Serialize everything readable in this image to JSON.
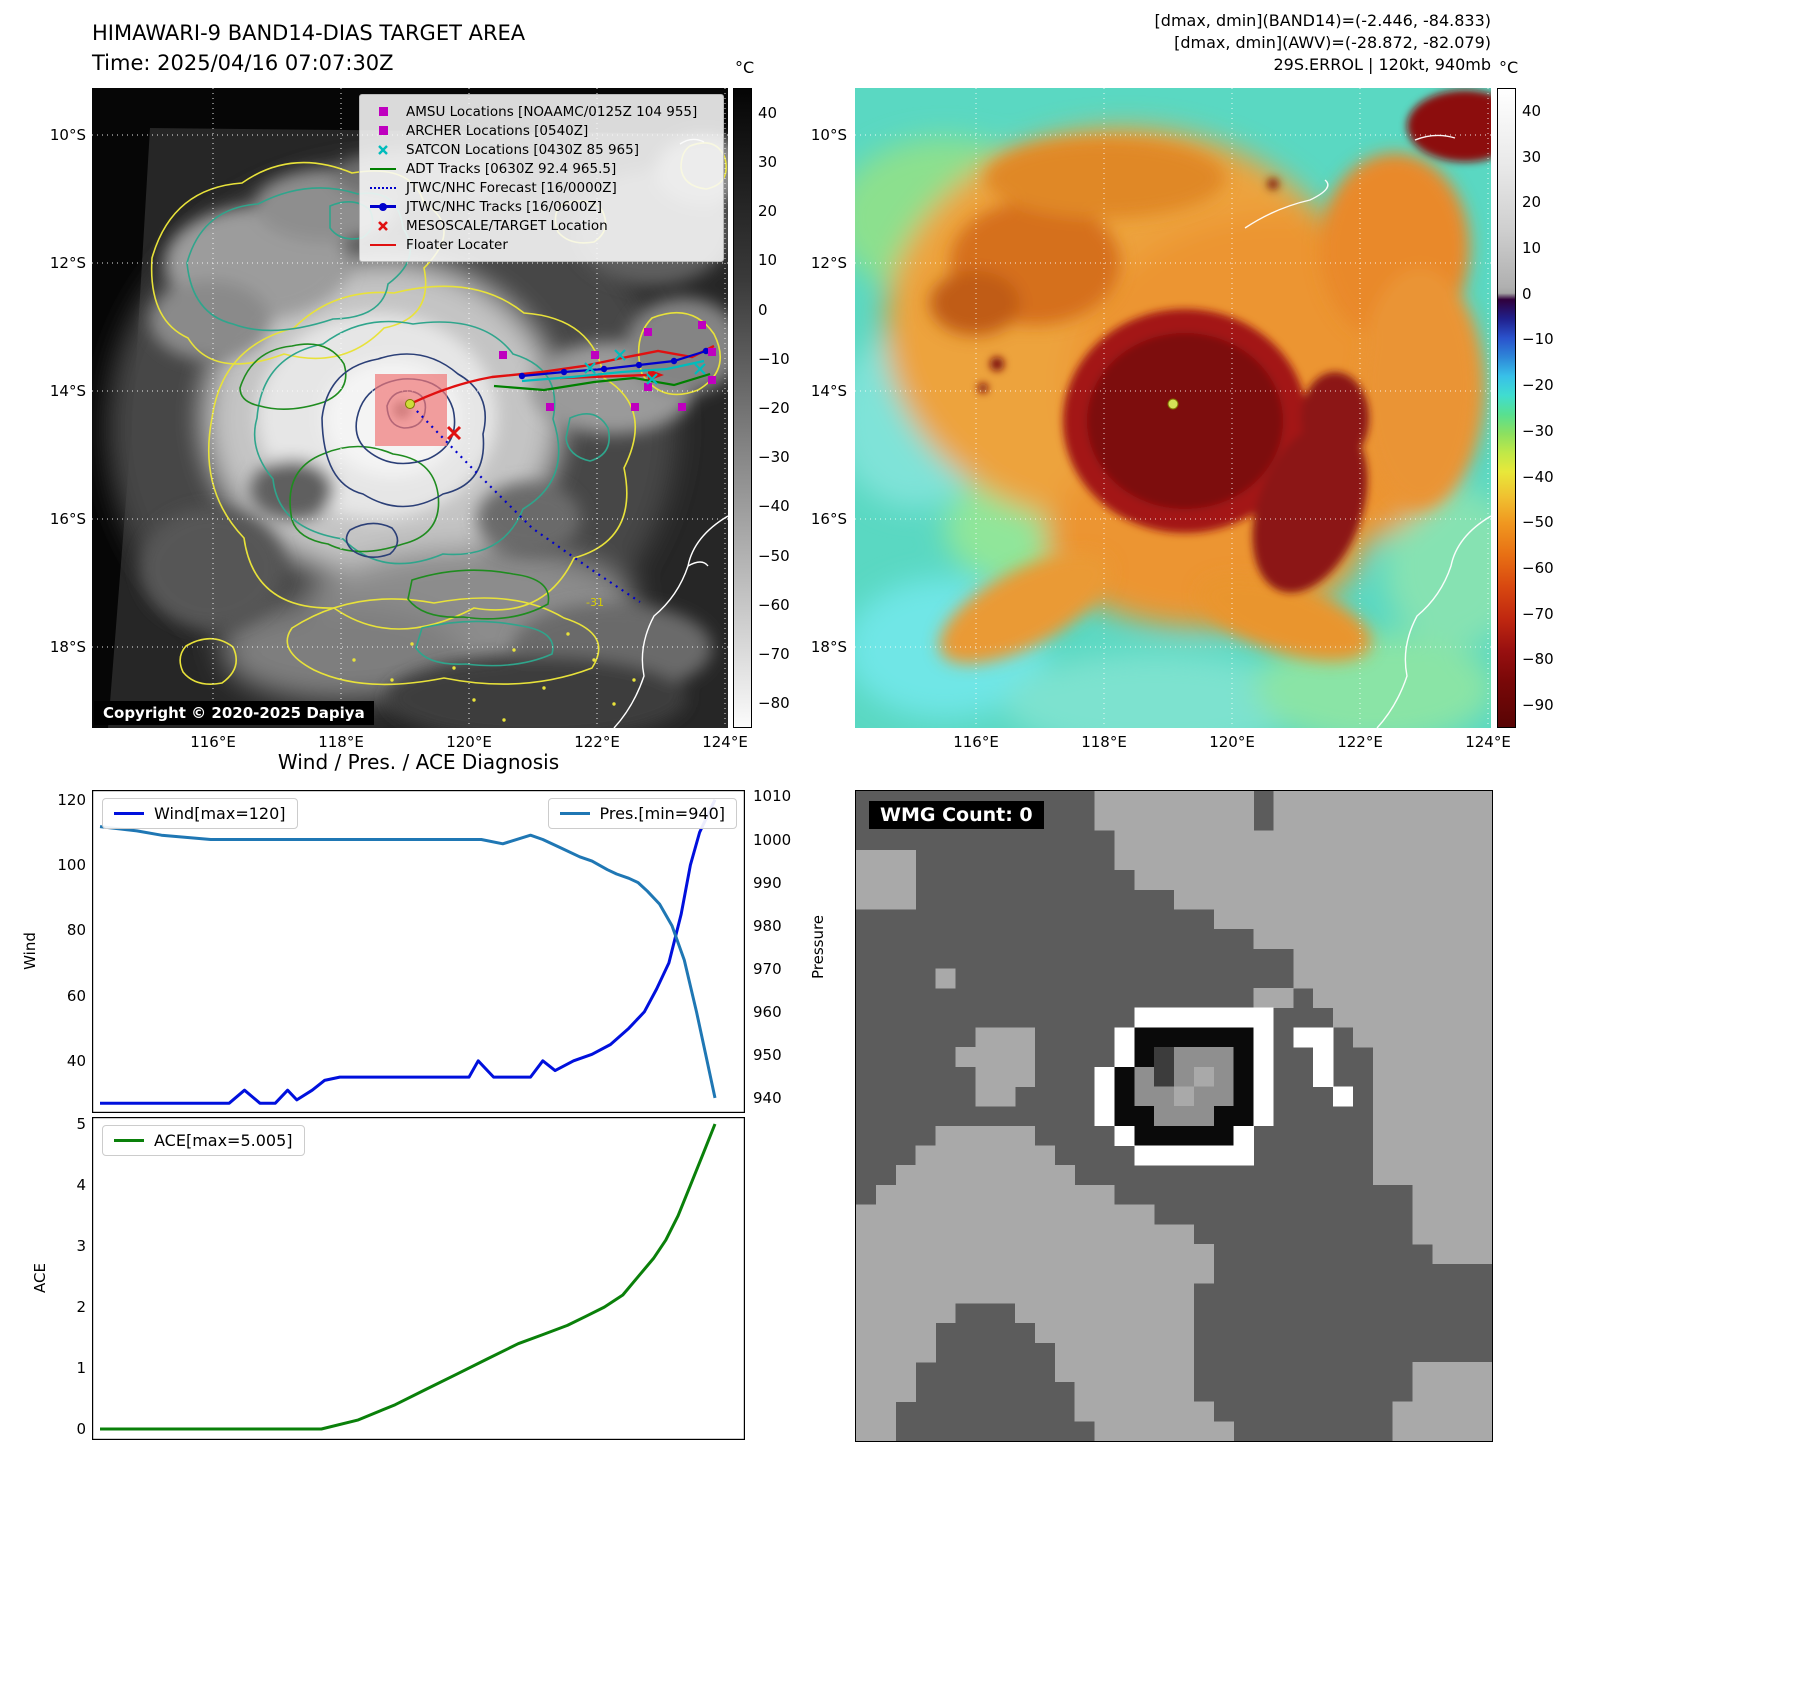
{
  "band14": {
    "title": "HIMAWARI-9 BAND14-DIAS TARGET AREA",
    "time": "Time: 2025/04/16 07:07:30Z",
    "copyright": "Copyright © 2020-2025 Dapiya",
    "contour_label": "-31",
    "colorbar_unit": "°C",
    "colorbar_ticks": [
      "40",
      "30",
      "20",
      "10",
      "0",
      "−10",
      "−20",
      "−30",
      "−40",
      "−50",
      "−60",
      "−70",
      "−80"
    ],
    "colorbar_range": [
      45,
      -85
    ],
    "lat_labels": [
      "10°S",
      "12°S",
      "14°S",
      "16°S",
      "18°S"
    ],
    "lon_labels": [
      "116°E",
      "118°E",
      "120°E",
      "122°E",
      "124°E"
    ],
    "legend": [
      {
        "marker": "magenta-square",
        "label": "AMSU Locations [NOAAMC/0125Z 104 955]"
      },
      {
        "marker": "magenta-square",
        "label": "ARCHER Locations [0540Z]"
      },
      {
        "marker": "cyan-x",
        "label": "SATCON Locations [0430Z 85 965]"
      },
      {
        "marker": "green-line",
        "label": "ADT Tracks [0630Z 92.4 965.5]"
      },
      {
        "marker": "blue-dotted-line",
        "label": "JTWC/NHC Forecast [16/0000Z]"
      },
      {
        "marker": "blue-line-dot",
        "label": "JTWC/NHC Tracks [16/0600Z]"
      },
      {
        "marker": "red-x",
        "label": "MESOSCALE/TARGET Location"
      },
      {
        "marker": "red-line",
        "label": "Floater Locater"
      }
    ]
  },
  "awv": {
    "annotation_line1": "[dmax, dmin](BAND14)=(-2.446, -84.833)",
    "annotation_line2": "[dmax, dmin](AWV)=(-28.872, -82.079)",
    "annotation_line3": "29S.ERROL | 120kt, 940mb",
    "colorbar_unit": "°C",
    "colorbar_ticks": [
      "40",
      "30",
      "20",
      "10",
      "0",
      "−10",
      "−20",
      "−30",
      "−40",
      "−50",
      "−60",
      "−70",
      "−80",
      "−90"
    ],
    "colorbar_range": [
      45,
      -95
    ],
    "lat_labels": [
      "10°S",
      "12°S",
      "14°S",
      "16°S",
      "18°S"
    ],
    "lon_labels": [
      "116°E",
      "118°E",
      "120°E",
      "122°E",
      "124°E"
    ]
  },
  "diagnosis": {
    "title": "Wind / Pres. / ACE Diagnosis"
  },
  "wmg": {
    "count_label": "WMG Count: 0"
  },
  "chart_data": [
    {
      "type": "line",
      "title": "Wind / Pres. / ACE Diagnosis — wind & pressure subplot",
      "xlabel": "",
      "legend_position": "upper left / upper right",
      "grid": false,
      "series": [
        {
          "name": "Wind[max=120]",
          "axis": "left",
          "ylabel": "Wind",
          "ylim": [
            24,
            123
          ],
          "yticks": [
            40,
            60,
            80,
            100,
            120
          ],
          "color": "#0010dd",
          "points": [
            [
              0,
              27
            ],
            [
              0.21,
              27
            ],
            [
              0.235,
              31
            ],
            [
              0.26,
              27
            ],
            [
              0.285,
              27
            ],
            [
              0.305,
              31
            ],
            [
              0.32,
              28
            ],
            [
              0.345,
              31
            ],
            [
              0.365,
              34
            ],
            [
              0.39,
              35
            ],
            [
              0.6,
              35
            ],
            [
              0.615,
              40
            ],
            [
              0.64,
              35
            ],
            [
              0.7,
              35
            ],
            [
              0.72,
              40
            ],
            [
              0.74,
              37
            ],
            [
              0.77,
              40
            ],
            [
              0.8,
              42
            ],
            [
              0.83,
              45
            ],
            [
              0.86,
              50
            ],
            [
              0.885,
              55
            ],
            [
              0.905,
              62
            ],
            [
              0.925,
              70
            ],
            [
              0.945,
              85
            ],
            [
              0.96,
              100
            ],
            [
              0.975,
              110
            ],
            [
              1,
              120
            ]
          ]
        },
        {
          "name": "Pres.[min=940]",
          "axis": "right",
          "ylabel": "Pressure",
          "ylim": [
            936.5,
            1011.5
          ],
          "yticks": [
            940,
            950,
            960,
            970,
            980,
            990,
            1000,
            1010
          ],
          "color": "#1f77b4",
          "points": [
            [
              0,
              1003
            ],
            [
              0.06,
              1002
            ],
            [
              0.1,
              1001
            ],
            [
              0.18,
              1000
            ],
            [
              0.25,
              1000
            ],
            [
              0.55,
              1000
            ],
            [
              0.62,
              1000
            ],
            [
              0.655,
              999
            ],
            [
              0.7,
              1001
            ],
            [
              0.72,
              1000
            ],
            [
              0.75,
              998
            ],
            [
              0.78,
              996
            ],
            [
              0.8,
              995
            ],
            [
              0.825,
              993
            ],
            [
              0.84,
              992
            ],
            [
              0.86,
              991
            ],
            [
              0.875,
              990
            ],
            [
              0.89,
              988
            ],
            [
              0.91,
              985
            ],
            [
              0.93,
              980
            ],
            [
              0.95,
              972
            ],
            [
              0.97,
              960
            ],
            [
              0.985,
              950
            ],
            [
              1,
              940
            ]
          ]
        }
      ]
    },
    {
      "type": "line",
      "title": "Wind / Pres. / ACE Diagnosis — ACE subplot",
      "xlabel": "",
      "legend_position": "upper left",
      "grid": false,
      "series": [
        {
          "name": "ACE[max=5.005]",
          "axis": "left",
          "ylabel": "ACE",
          "ylim": [
            -0.18,
            5.12
          ],
          "yticks": [
            0,
            1,
            2,
            3,
            4,
            5
          ],
          "color": "#0a800a",
          "points": [
            [
              0,
              0
            ],
            [
              0.36,
              0
            ],
            [
              0.42,
              0.15
            ],
            [
              0.48,
              0.4
            ],
            [
              0.53,
              0.65
            ],
            [
              0.58,
              0.9
            ],
            [
              0.63,
              1.15
            ],
            [
              0.68,
              1.4
            ],
            [
              0.72,
              1.55
            ],
            [
              0.76,
              1.7
            ],
            [
              0.79,
              1.85
            ],
            [
              0.82,
              2.0
            ],
            [
              0.85,
              2.2
            ],
            [
              0.875,
              2.5
            ],
            [
              0.9,
              2.8
            ],
            [
              0.92,
              3.1
            ],
            [
              0.94,
              3.5
            ],
            [
              0.96,
              4.0
            ],
            [
              0.98,
              4.5
            ],
            [
              1,
              5.005
            ]
          ]
        }
      ]
    }
  ]
}
